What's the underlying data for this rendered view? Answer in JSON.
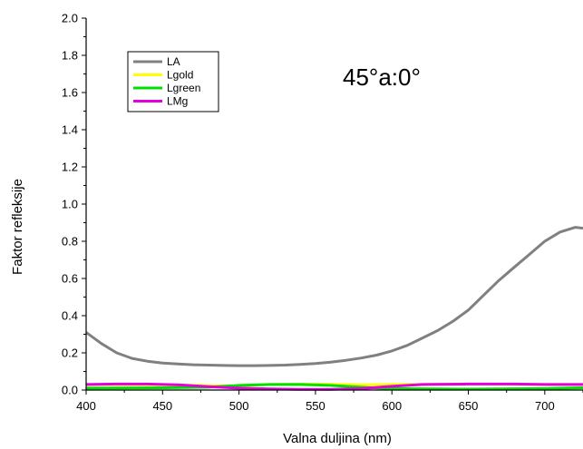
{
  "chart_data": {
    "type": "line",
    "title": "",
    "annotation": "45°a:0°",
    "xlabel": "Valna duljina (nm)",
    "ylabel": "Faktor refleksije",
    "xlim": [
      400,
      725
    ],
    "ylim": [
      0.0,
      2.0
    ],
    "xticks": [
      400,
      450,
      500,
      550,
      600,
      650,
      700
    ],
    "xtick_labels": [
      "400",
      "450",
      "500",
      "550",
      "600",
      "650",
      "700"
    ],
    "yticks": [
      0.0,
      0.2,
      0.4,
      0.6,
      0.8,
      1.0,
      1.2,
      1.4,
      1.6,
      1.8,
      2.0
    ],
    "ytick_labels": [
      "0.0",
      "0.2",
      "0.4",
      "0.6",
      "0.8",
      "1.0",
      "1.2",
      "1.4",
      "1.6",
      "1.8",
      "2.0"
    ],
    "grid": false,
    "legend_position": "top-left",
    "series": [
      {
        "name": "LA",
        "color": "#808080",
        "x": [
          400,
          410,
          420,
          430,
          440,
          450,
          460,
          470,
          480,
          490,
          500,
          510,
          520,
          530,
          540,
          550,
          560,
          570,
          580,
          590,
          600,
          610,
          620,
          630,
          640,
          650,
          660,
          670,
          680,
          690,
          700,
          710,
          720,
          725
        ],
        "y": [
          0.31,
          0.25,
          0.2,
          0.17,
          0.155,
          0.145,
          0.14,
          0.136,
          0.134,
          0.132,
          0.131,
          0.131,
          0.132,
          0.134,
          0.138,
          0.143,
          0.15,
          0.16,
          0.172,
          0.188,
          0.21,
          0.24,
          0.28,
          0.32,
          0.37,
          0.43,
          0.51,
          0.59,
          0.66,
          0.73,
          0.8,
          0.85,
          0.875,
          0.87
        ]
      },
      {
        "name": "Lgold",
        "color": "#ffff00",
        "x": [
          400,
          450,
          500,
          520,
          550,
          580,
          600,
          650,
          700,
          725
        ],
        "y": [
          0.03,
          0.028,
          0.022,
          0.03,
          0.032,
          0.028,
          0.03,
          0.032,
          0.03,
          0.03
        ]
      },
      {
        "name": "Lgreen",
        "color": "#00e000",
        "x": [
          400,
          450,
          480,
          500,
          520,
          540,
          560,
          580,
          600,
          650,
          700,
          725
        ],
        "y": [
          0.01,
          0.012,
          0.015,
          0.025,
          0.03,
          0.03,
          0.025,
          0.015,
          0.008,
          0.005,
          0.008,
          0.012
        ]
      },
      {
        "name": "LMg",
        "color": "#e000e0",
        "x": [
          400,
          420,
          440,
          460,
          480,
          500,
          520,
          540,
          560,
          580,
          600,
          620,
          650,
          680,
          700,
          725
        ],
        "y": [
          0.03,
          0.032,
          0.032,
          0.028,
          0.018,
          0.01,
          0.006,
          0.004,
          0.004,
          0.008,
          0.02,
          0.03,
          0.032,
          0.032,
          0.03,
          0.03
        ]
      }
    ]
  }
}
